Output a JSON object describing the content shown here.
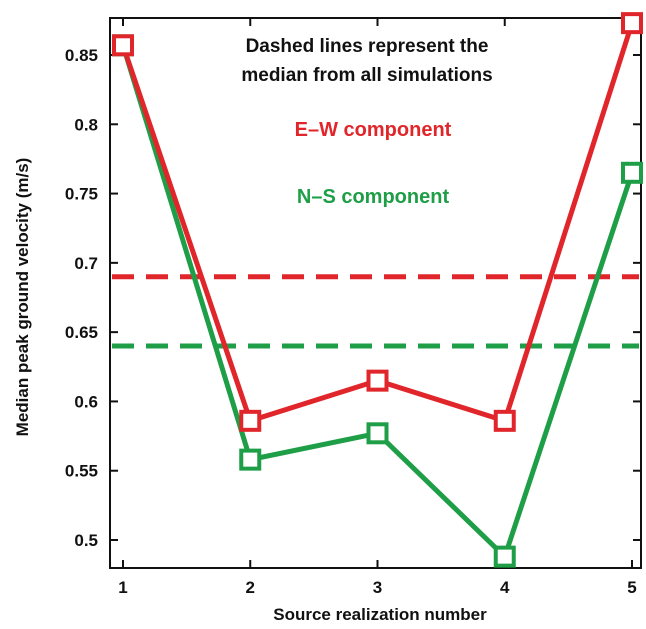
{
  "chart_data": {
    "type": "line",
    "title": "",
    "xlabel": "Source realization number",
    "ylabel": "Median peak ground velocity (m/s)",
    "x": [
      1,
      2,
      3,
      4,
      5
    ],
    "xlim": [
      1,
      5
    ],
    "ylim": [
      0.485,
      0.875
    ],
    "xticks": [
      "1",
      "2",
      "3",
      "4",
      "5"
    ],
    "yticks": [
      "0.5",
      "0.55",
      "0.6",
      "0.65",
      "0.7",
      "0.75",
      "0.8",
      "0.85"
    ],
    "grid": false,
    "annotations": {
      "note_line1": "Dashed lines represent the",
      "note_line2": "median from all simulations",
      "ew_label": "E–W component",
      "ns_label": "N–S component"
    },
    "series": [
      {
        "key": "ew",
        "values": [
          0.857,
          0.586,
          0.615,
          0.586,
          0.873
        ],
        "median": 0.69,
        "color": "#e0262a"
      },
      {
        "key": "ns",
        "values": [
          0.857,
          0.558,
          0.577,
          0.488,
          0.765
        ],
        "median": 0.64,
        "color": "#1f9e48"
      }
    ]
  }
}
